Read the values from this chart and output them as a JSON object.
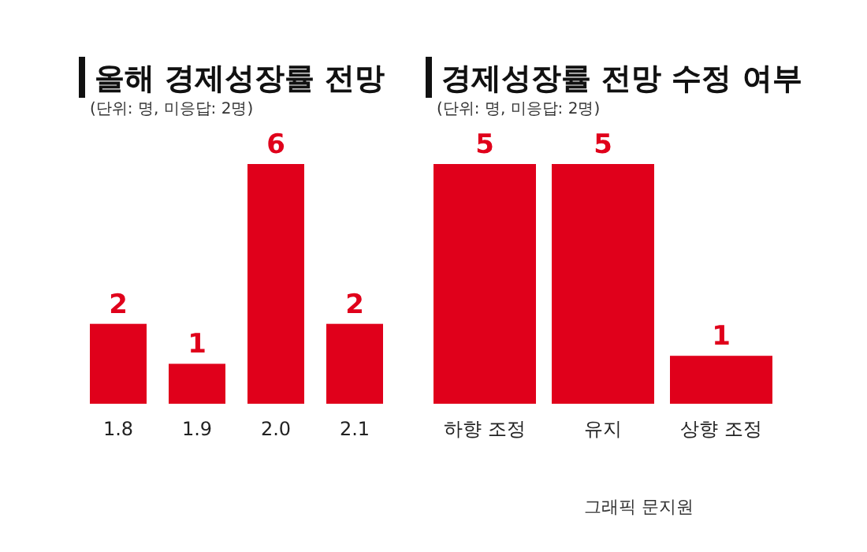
{
  "chart_data": [
    {
      "type": "bar",
      "title": "올해 경제성장률 전망",
      "subtitle": "(단위: 명, 미응답: 2명)",
      "categories": [
        "1.8",
        "1.9",
        "2.0",
        "2.1"
      ],
      "values": [
        2,
        1,
        6,
        2
      ],
      "color": "#e0001b",
      "data_labels": true
    },
    {
      "type": "bar",
      "title": "경제성장률 전망 수정 여부",
      "subtitle": "(단위: 명, 미응답: 2명)",
      "categories": [
        "하향 조정",
        "유지",
        "상향 조정"
      ],
      "values": [
        5,
        5,
        1
      ],
      "color": "#e0001b",
      "data_labels": true,
      "annotations": [
        "그래픽 문지원"
      ]
    }
  ]
}
